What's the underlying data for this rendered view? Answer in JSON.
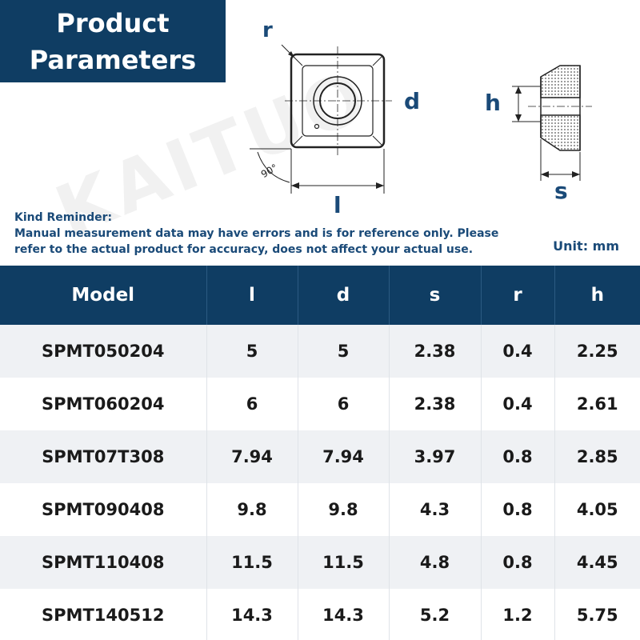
{
  "header": {
    "title_line1": "Product",
    "title_line2": "Parameters"
  },
  "diagram": {
    "label_r": "r",
    "label_d": "d",
    "label_l": "l",
    "label_angle": "90°",
    "label_h": "h",
    "label_s": "s"
  },
  "notice": {
    "heading": "Kind Reminder:",
    "body": "Manual measurement data may have errors and is for reference only. Please refer to the actual product for accuracy, does not affect your actual use.",
    "unit": "Unit: mm"
  },
  "watermark": "KAITUO",
  "table": {
    "headers": [
      "Model",
      "l",
      "d",
      "s",
      "r",
      "h"
    ],
    "rows": [
      [
        "SPMT050204",
        "5",
        "5",
        "2.38",
        "0.4",
        "2.25"
      ],
      [
        "SPMT060204",
        "6",
        "6",
        "2.38",
        "0.4",
        "2.61"
      ],
      [
        "SPMT07T308",
        "7.94",
        "7.94",
        "3.97",
        "0.8",
        "2.85"
      ],
      [
        "SPMT090408",
        "9.8",
        "9.8",
        "4.3",
        "0.8",
        "4.05"
      ],
      [
        "SPMT110408",
        "11.5",
        "11.5",
        "4.8",
        "0.8",
        "4.45"
      ],
      [
        "SPMT140512",
        "14.3",
        "14.3",
        "5.2",
        "1.2",
        "5.75"
      ]
    ]
  },
  "colors": {
    "header_bg": "#0f3d63",
    "label_blue": "#1a4a78"
  }
}
